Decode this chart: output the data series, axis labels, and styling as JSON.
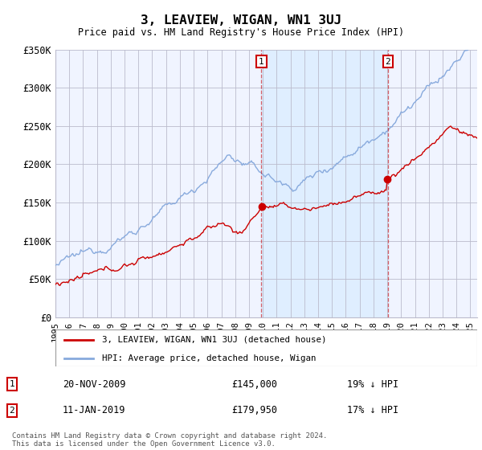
{
  "title": "3, LEAVIEW, WIGAN, WN1 3UJ",
  "subtitle": "Price paid vs. HM Land Registry's House Price Index (HPI)",
  "ylabel_ticks": [
    "£0",
    "£50K",
    "£100K",
    "£150K",
    "£200K",
    "£250K",
    "£300K",
    "£350K"
  ],
  "ylim": [
    0,
    350000
  ],
  "xlim_start": 1995.0,
  "xlim_end": 2025.5,
  "purchase1_date": 2009.9,
  "purchase1_price": 145000,
  "purchase1_label": "1",
  "purchase1_text": "20-NOV-2009",
  "purchase1_amount": "£145,000",
  "purchase1_hpi": "19% ↓ HPI",
  "purchase2_date": 2019.04,
  "purchase2_price": 179950,
  "purchase2_label": "2",
  "purchase2_text": "11-JAN-2019",
  "purchase2_amount": "£179,950",
  "purchase2_hpi": "17% ↓ HPI",
  "legend_property": "3, LEAVIEW, WIGAN, WN1 3UJ (detached house)",
  "legend_hpi": "HPI: Average price, detached house, Wigan",
  "footer": "Contains HM Land Registry data © Crown copyright and database right 2024.\nThis data is licensed under the Open Government Licence v3.0.",
  "line_color_property": "#cc0000",
  "line_color_hpi": "#88aadd",
  "shade_color": "#ddeeff",
  "background_color": "#f0f4ff",
  "grid_color": "#bbbbcc",
  "marker_box_color": "#cc0000"
}
